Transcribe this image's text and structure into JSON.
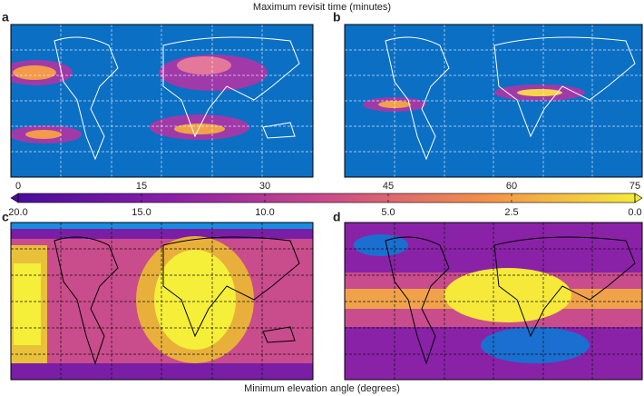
{
  "title": "Maximum revisit time (minutes)",
  "panels": [
    {
      "label": "a"
    },
    {
      "label": "b"
    },
    {
      "label": "c"
    },
    {
      "label": "d"
    }
  ],
  "colorbar": {
    "lim": [
      0,
      75
    ],
    "top_ticks": [
      0,
      15,
      30,
      45,
      60,
      75
    ],
    "bottom_ticks": [
      {
        "value": 20,
        "label": "20.0"
      },
      {
        "value": 15,
        "label": "15.0"
      },
      {
        "value": 10,
        "label": "10.0"
      },
      {
        "value": 5,
        "label": "5.0"
      },
      {
        "value": 2.5,
        "label": "2.5"
      },
      {
        "value": 0,
        "label": "0.0"
      }
    ]
  },
  "bottom_title": "Minimum elevation angle (degrees)"
}
